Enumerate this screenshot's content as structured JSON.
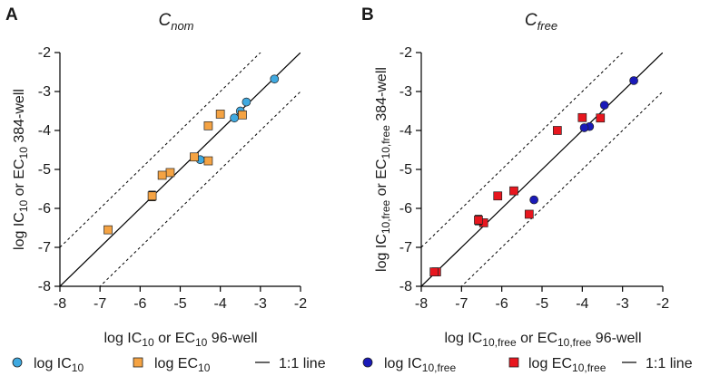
{
  "chart_data": [
    {
      "type": "scatter",
      "panel_label": "A",
      "title": {
        "main": "C",
        "sub": "nom"
      },
      "xlabel": {
        "parts": [
          "log IC",
          "10",
          " or EC",
          "10",
          " 96-well"
        ]
      },
      "ylabel": {
        "parts": [
          "log IC",
          "10",
          " or EC",
          "10",
          " 384-well"
        ]
      },
      "xlim": [
        -8,
        -2
      ],
      "ylim": [
        -8,
        -2
      ],
      "xticks": [
        "-8",
        "-7",
        "-6",
        "-5",
        "-4",
        "-3",
        "-2"
      ],
      "yticks": [
        "-8",
        "-7",
        "-6",
        "-5",
        "-4",
        "-3",
        "-2"
      ],
      "reference_lines": {
        "identity": true,
        "offsets": [
          1,
          -1
        ]
      },
      "series": [
        {
          "name": "log IC10",
          "marker": "circle",
          "color": "#3fa9e0",
          "points": [
            {
              "x": -2.65,
              "y": -2.68
            },
            {
              "x": -3.35,
              "y": -3.27
            },
            {
              "x": -3.5,
              "y": -3.5
            },
            {
              "x": -3.65,
              "y": -3.68
            },
            {
              "x": -4.5,
              "y": -4.75
            }
          ]
        },
        {
          "name": "log EC10",
          "marker": "square",
          "color": "#f5a343",
          "points": [
            {
              "x": -3.45,
              "y": -3.6
            },
            {
              "x": -4.0,
              "y": -3.58
            },
            {
              "x": -4.3,
              "y": -3.88
            },
            {
              "x": -4.3,
              "y": -4.78
            },
            {
              "x": -4.65,
              "y": -4.68
            },
            {
              "x": -5.25,
              "y": -5.08
            },
            {
              "x": -5.45,
              "y": -5.15
            },
            {
              "x": -5.7,
              "y": -5.68,
              "err": 0.12
            },
            {
              "x": -6.8,
              "y": -6.55
            }
          ]
        }
      ],
      "legend": [
        {
          "marker": "circle",
          "color": "#3fa9e0",
          "label": {
            "main": "log IC",
            "sub": "10"
          }
        },
        {
          "marker": "square",
          "color": "#f5a343",
          "label": {
            "main": "log EC",
            "sub": "10"
          }
        },
        {
          "marker": "line",
          "color": "#000000",
          "label": {
            "main": "1:1 line",
            "sub": ""
          }
        }
      ]
    },
    {
      "type": "scatter",
      "panel_label": "B",
      "title": {
        "main": "C",
        "sub": "free"
      },
      "xlabel": {
        "parts": [
          "log IC",
          "10,free",
          " or EC",
          "10,free",
          " 96-well"
        ]
      },
      "ylabel": {
        "parts": [
          "log IC",
          "10,free",
          " or EC",
          "10,free",
          " 384-well"
        ]
      },
      "xlim": [
        -8,
        -2
      ],
      "ylim": [
        -8,
        -2
      ],
      "xticks": [
        "-8",
        "-7",
        "-6",
        "-5",
        "-4",
        "-3",
        "-2"
      ],
      "yticks": [
        "-8",
        "-7",
        "-6",
        "-5",
        "-4",
        "-3",
        "-2"
      ],
      "reference_lines": {
        "identity": true,
        "offsets": [
          1,
          -1
        ]
      },
      "series": [
        {
          "name": "log IC10,free",
          "marker": "circle",
          "color": "#1a1ab8",
          "points": [
            {
              "x": -2.72,
              "y": -2.72
            },
            {
              "x": -3.45,
              "y": -3.35
            },
            {
              "x": -3.82,
              "y": -3.9
            },
            {
              "x": -3.95,
              "y": -3.93
            },
            {
              "x": -5.2,
              "y": -5.78
            }
          ]
        },
        {
          "name": "log EC10,free",
          "marker": "square",
          "color": "#e8161e",
          "points": [
            {
              "x": -3.55,
              "y": -3.68
            },
            {
              "x": -4.0,
              "y": -3.67
            },
            {
              "x": -4.62,
              "y": -4.0
            },
            {
              "x": -5.32,
              "y": -6.15
            },
            {
              "x": -5.7,
              "y": -5.55
            },
            {
              "x": -6.1,
              "y": -5.68
            },
            {
              "x": -6.45,
              "y": -6.37
            },
            {
              "x": -6.58,
              "y": -6.3,
              "err": 0.12
            },
            {
              "x": -7.62,
              "y": -7.63
            },
            {
              "x": -7.68,
              "y": -7.63
            }
          ]
        }
      ],
      "legend": [
        {
          "marker": "circle",
          "color": "#1a1ab8",
          "label": {
            "main": "log IC",
            "sub": "10,free"
          }
        },
        {
          "marker": "square",
          "color": "#e8161e",
          "label": {
            "main": "log EC",
            "sub": "10,free"
          }
        },
        {
          "marker": "line",
          "color": "#000000",
          "label": {
            "main": "1:1 line",
            "sub": ""
          }
        }
      ]
    }
  ]
}
